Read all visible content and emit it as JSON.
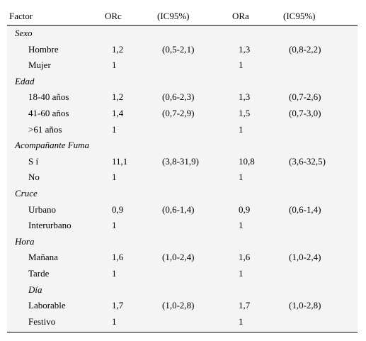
{
  "header": {
    "factor": "Factor",
    "orc": "ORc",
    "ic1": "(IC95%)",
    "ora": "ORa",
    "ic2": "(IC95%)"
  },
  "rows": [
    {
      "type": "category",
      "label": "Sexo"
    },
    {
      "type": "data",
      "label": "Hombre",
      "orc": "1,2",
      "ic1": "(0,5-2,1)",
      "ora": "1,3",
      "ic2": "(0,8-2,2)"
    },
    {
      "type": "data",
      "label": "Mujer",
      "orc": "1",
      "ic1": "",
      "ora": "1",
      "ic2": ""
    },
    {
      "type": "category",
      "label": "Edad"
    },
    {
      "type": "data",
      "label": "18-40 años",
      "orc": "1,2",
      "ic1": "(0,6-2,3)",
      "ora": "1,3",
      "ic2": "(0,7-2,6)"
    },
    {
      "type": "data",
      "label": "41-60 años",
      "orc": "1,4",
      "ic1": "(0,7-2,9)",
      "ora": "1,5",
      "ic2": "(0,7-3,0)"
    },
    {
      "type": "data",
      "label": ">61 años",
      "orc": "1",
      "ic1": "",
      "ora": "1",
      "ic2": ""
    },
    {
      "type": "category",
      "label": "Acompañante Fuma"
    },
    {
      "type": "data",
      "label": "S í",
      "orc": "11,1",
      "ic1": "(3,8-31,9)",
      "ora": "10,8",
      "ic2": "(3,6-32,5)"
    },
    {
      "type": "data",
      "label": "No",
      "orc": "1",
      "ic1": "",
      "ora": "1",
      "ic2": ""
    },
    {
      "type": "category",
      "label": "Cruce"
    },
    {
      "type": "data",
      "label": "Urbano",
      "orc": "0,9",
      "ic1": "(0,6-1,4)",
      "ora": "0,9",
      "ic2": "(0,6-1,4)"
    },
    {
      "type": "data",
      "label": "Interurbano",
      "orc": "1",
      "ic1": "",
      "ora": "1",
      "ic2": ""
    },
    {
      "type": "category",
      "label": "Hora"
    },
    {
      "type": "data",
      "label": "Mañana",
      "orc": "1,6",
      "ic1": "(1,0-2,4)",
      "ora": "1,6",
      "ic2": "(1,0-2,4)"
    },
    {
      "type": "data",
      "label": "Tarde",
      "orc": "1",
      "ic1": "",
      "ora": "1",
      "ic2": ""
    },
    {
      "type": "category-indent",
      "label": "Día"
    },
    {
      "type": "data",
      "label": "Laborable",
      "orc": "1,7",
      "ic1": "(1,0-2,8)",
      "ora": "1,7",
      "ic2": "(1,0-2,8)"
    },
    {
      "type": "data",
      "label": "Festivo",
      "orc": "1",
      "ic1": "",
      "ora": "1",
      "ic2": ""
    }
  ]
}
